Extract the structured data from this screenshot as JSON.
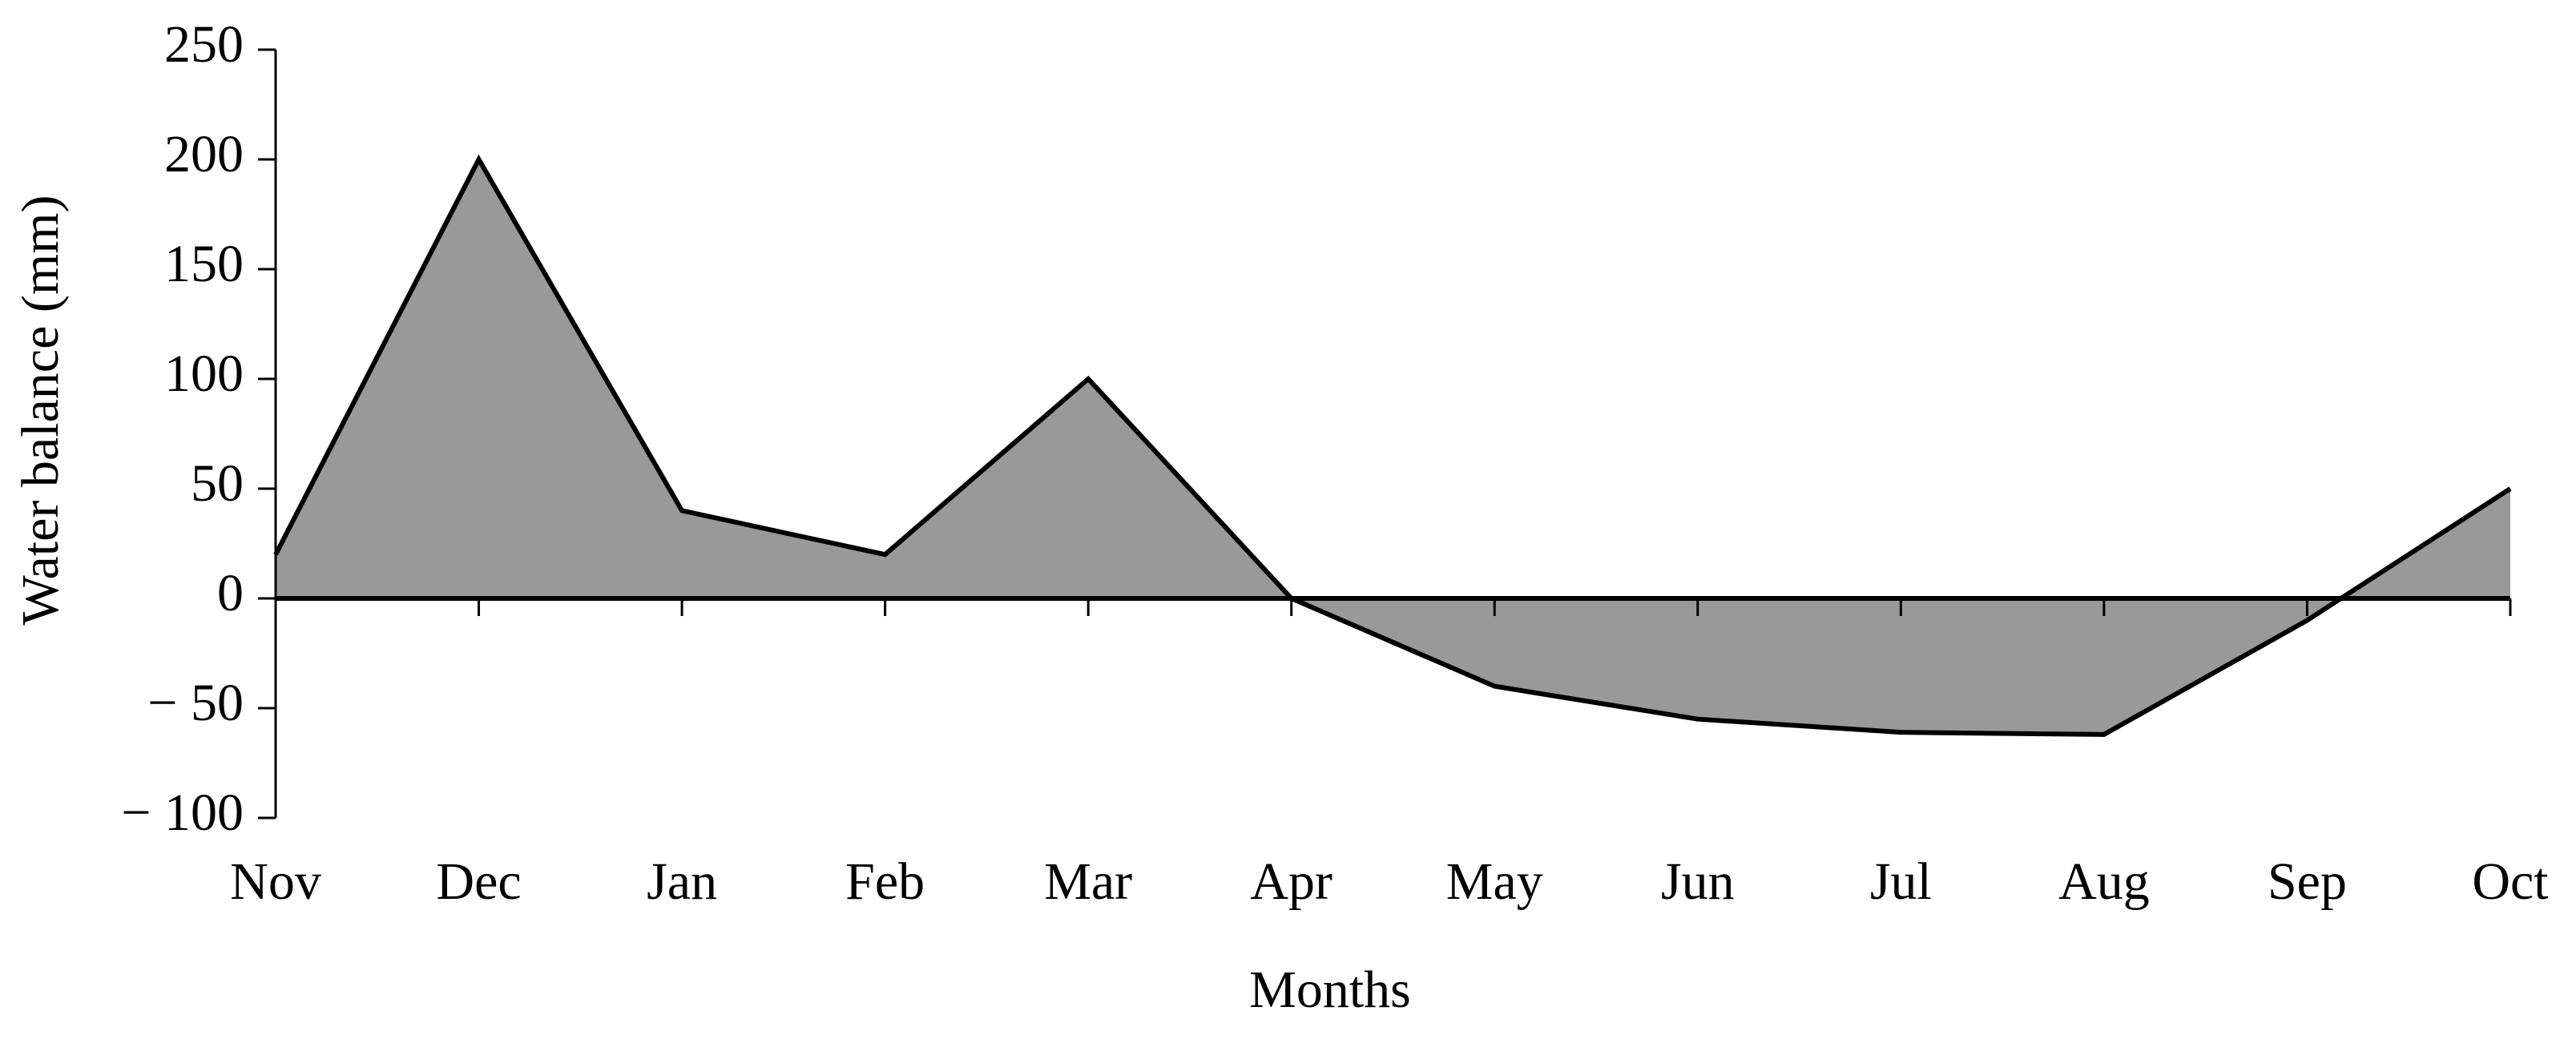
{
  "chart_data": {
    "type": "area",
    "x_label": "Months",
    "y_label": "Water balance (mm)",
    "categories": [
      "Nov",
      "Dec",
      "Jan",
      "Feb",
      "Mar",
      "Apr",
      "May",
      "Jun",
      "Jul",
      "Aug",
      "Sep",
      "Oct"
    ],
    "values": [
      20,
      200,
      40,
      20,
      100,
      0,
      -40,
      -55,
      -61,
      -62,
      -10,
      50
    ],
    "color": "#999999",
    "line_color": "#000000",
    "ylim": [
      -100,
      250
    ],
    "yticks": [
      {
        "value": -100,
        "label": "− 100"
      },
      {
        "value": -50,
        "label": "− 50"
      },
      0,
      50,
      100,
      150,
      200,
      250
    ],
    "grid": false
  }
}
